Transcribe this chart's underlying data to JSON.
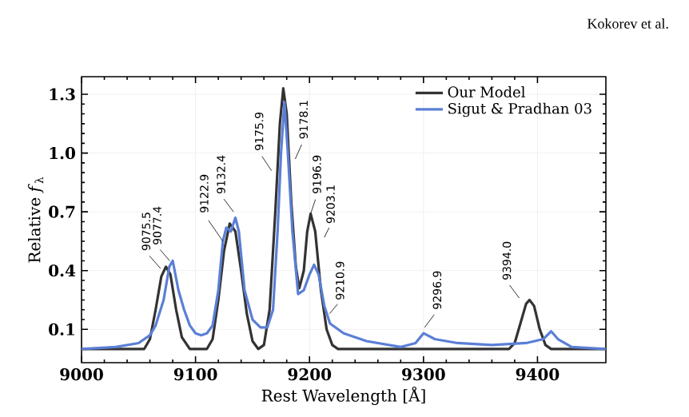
{
  "chart_data": {
    "type": "line",
    "xlabel": "Rest Wavelength [Å]",
    "ylabel": "Relative *f*$_{λ}$",
    "xlim": [
      9000,
      9460
    ],
    "ylim": [
      -0.07,
      1.39
    ],
    "xticks": [
      9000,
      9100,
      9200,
      9300,
      9400
    ],
    "yticks": [
      0.1,
      0.4,
      0.7,
      {
        "value": 1.0,
        "label": "1.0"
      },
      1.3
    ],
    "grid": true,
    "legend": "top right",
    "line_style": "solid",
    "marker": "none",
    "series": [
      {
        "name": "Our Model",
        "color": "#333333",
        "x": [
          9000,
          9055,
          9060,
          9065,
          9070,
          9074,
          9078,
          9083,
          9088,
          9095,
          9110,
          9115,
          9120,
          9125,
          9130,
          9135,
          9140,
          9145,
          9150,
          9155,
          9160,
          9165,
          9170,
          9174,
          9177,
          9180,
          9184,
          9188,
          9191,
          9195,
          9198,
          9201,
          9205,
          9210,
          9215,
          9220,
          9225,
          9375,
          9380,
          9385,
          9390,
          9393,
          9397,
          9402,
          9407,
          9412,
          9460
        ],
        "values": [
          0,
          0,
          0.05,
          0.2,
          0.37,
          0.42,
          0.38,
          0.2,
          0.06,
          0,
          0,
          0.05,
          0.25,
          0.5,
          0.64,
          0.6,
          0.4,
          0.18,
          0.04,
          0,
          0.02,
          0.2,
          0.7,
          1.15,
          1.33,
          1.2,
          0.75,
          0.42,
          0.31,
          0.4,
          0.6,
          0.69,
          0.6,
          0.3,
          0.1,
          0.02,
          0,
          0,
          0.03,
          0.13,
          0.23,
          0.25,
          0.22,
          0.1,
          0.02,
          0,
          0
        ]
      },
      {
        "name": "Sigut & Pradhan 03",
        "color": "#5b7fd6",
        "x": [
          9000,
          9030,
          9050,
          9060,
          9065,
          9072,
          9077,
          9080,
          9085,
          9090,
          9095,
          9100,
          9105,
          9110,
          9115,
          9120,
          9124,
          9127,
          9131,
          9135,
          9138,
          9143,
          9150,
          9157,
          9163,
          9168,
          9172,
          9175,
          9178,
          9181,
          9185,
          9190,
          9195,
          9200,
          9204,
          9208,
          9213,
          9218,
          9230,
          9250,
          9280,
          9293,
          9300,
          9310,
          9330,
          9360,
          9390,
          9405,
          9412,
          9418,
          9430,
          9460
        ],
        "values": [
          0,
          0.01,
          0.03,
          0.07,
          0.12,
          0.25,
          0.42,
          0.45,
          0.3,
          0.2,
          0.12,
          0.08,
          0.07,
          0.08,
          0.12,
          0.3,
          0.55,
          0.62,
          0.6,
          0.67,
          0.6,
          0.3,
          0.15,
          0.11,
          0.11,
          0.2,
          0.6,
          1.0,
          1.26,
          1.0,
          0.6,
          0.28,
          0.3,
          0.38,
          0.43,
          0.38,
          0.22,
          0.13,
          0.08,
          0.04,
          0.01,
          0.03,
          0.08,
          0.05,
          0.03,
          0.02,
          0.03,
          0.05,
          0.09,
          0.05,
          0.01,
          0
        ]
      }
    ],
    "annotations": [
      {
        "text": "9075.5",
        "x": 9069.4,
        "y": 0.41
      },
      {
        "text": "9077.4",
        "x": 9077.3,
        "y": 0.45
      },
      {
        "text": "9122.9",
        "x": 9124,
        "y": 0.55
      },
      {
        "text": "9132.4",
        "x": 9133.3,
        "y": 0.7
      },
      {
        "text": "9175.9",
        "x": 9166.7,
        "y": 0.91
      },
      {
        "text": "9178.1",
        "x": 9187.5,
        "y": 0.97
      },
      {
        "text": "9196.9",
        "x": 9201,
        "y": 0.69
      },
      {
        "text": "9203.1",
        "x": 9213,
        "y": 0.57
      },
      {
        "text": "9210.9",
        "x": 9217.6,
        "y": 0.18
      },
      {
        "text": "9296.9",
        "x": 9301,
        "y": 0.11
      },
      {
        "text": "9394.0",
        "x": 9384,
        "y": 0.26
      },
      "Kokorev et al."
    ]
  }
}
